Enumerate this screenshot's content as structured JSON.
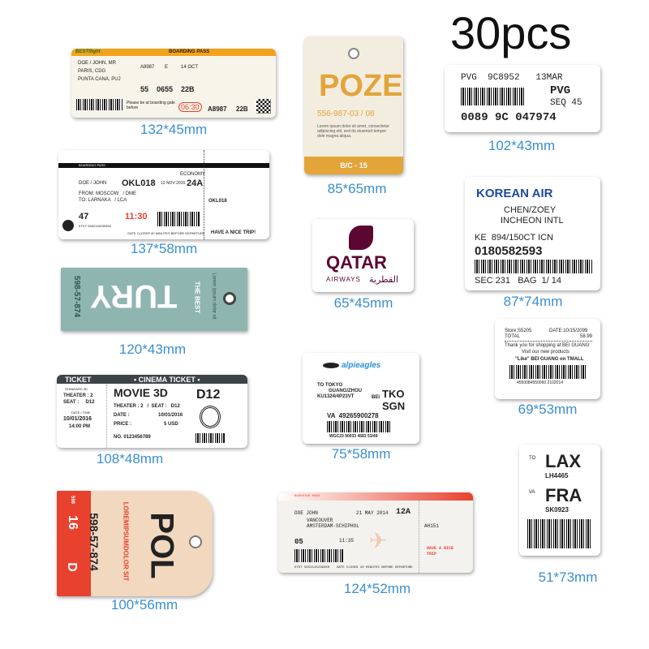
{
  "title": "30pcs",
  "colors": {
    "label": "#3a8fd0",
    "orange": "#f3a21b",
    "poze_gold": "#e3a43a",
    "qatar": "#5c0632",
    "teal": "#8fb5b0",
    "red": "#e8412e",
    "korean": "#1c4a9c"
  },
  "items": [
    {
      "size": "132*45mm",
      "brand": "BESTflight",
      "header": "BOARDING PASS",
      "passenger": "DOE / JOHN, MR",
      "from": "PARIS, CDG",
      "to": "PUNTA CANA, PUJ",
      "flight": "A8987",
      "class": "E",
      "date": "14 OCT",
      "gate": "55",
      "boarding": "0655",
      "seat": "22B",
      "notice": "Please be at boarding gate before",
      "time": "06:30"
    },
    {
      "size": "85*65mm",
      "title": "POZE",
      "code": "556-987-03 / 08",
      "text": "Lorem ipsum dolor sit amet, consectetur adipiscing elit, sed do eiusmod tempor dole magna aliqua.",
      "footer": "B/C - 15"
    },
    {
      "size": "102*43mm",
      "line1": "PVG  9C8952   13MAR",
      "dest": "PVG",
      "seq": "SEQ 45",
      "number": "0089 9C 047974"
    },
    {
      "size": "137*58mm",
      "header": "BOARDING PASS",
      "class": "ECONOMY",
      "passenger": "DOE / JOHN",
      "flight": "OKL018",
      "date": "12 NOV 2015",
      "seat": "24A",
      "from": "FROM: MOSCOW   / DME",
      "to": "TO: LARNAKA   / LCA",
      "gate": "47",
      "boarding": "11:30",
      "etkt": "ETKT 5552115239450",
      "closes": "GATE CLOSES 40 MINUTES BEFORE DEPARTURE",
      "wish": "HAVE A NICE TRIP!"
    },
    {
      "size": "65*45mm",
      "brand": "QATAR",
      "sub": "AIRWAYS",
      "arabic": "القطرية"
    },
    {
      "size": "87*74mm",
      "brand": "KOREAN AIR",
      "name": "CHEN/ZOEY",
      "airport": "INCHEON INTL",
      "flight": "KE  894/150CT ICN",
      "number": "0180582593",
      "seq": "SEC 231   BAG  1/ 14"
    },
    {
      "size": "120*43mm",
      "side": "598-57-874",
      "top": "THE BEST",
      "big": "TURY",
      "small": "Lorem ipsum dolor sit"
    },
    {
      "size": "69*53mm",
      "store": "Store:S5205",
      "date": "DATE:10/15/2099",
      "total_label": "TOTAL",
      "total": "58.99",
      "thanks": "Thank you for  shopping at BEI GUANG",
      "visit": "Visit our new products",
      "like": "\"Like\" BEI GUANG on TMALL",
      "barcode": "4550084550060 2102014"
    },
    {
      "size": "108*48mm",
      "left_header": "TICKET",
      "header": "• CINEMA TICKET •",
      "std": "STANDARD 3D",
      "theater": "THEATER : 2",
      "seat": "SEAT :     D12",
      "dt_label": "DATE / TIME",
      "date": "10/01/2016",
      "time": "14:00 PM",
      "movie": "MOVIE 3D",
      "row1": "THEATER : 2   /  SEAT :   D12",
      "date_label": "DATE :",
      "price_label": "PRICE :",
      "price": "5 USD",
      "no": "NO. 0123456789",
      "code": "D12"
    },
    {
      "size": "75*58mm",
      "brand": "alpieagles",
      "to": "TO TOKYO",
      "via": "GUANG/ZHOU",
      "flight": "KU1324/4P23VT",
      "bei": "BEI",
      "dest1": "TKO",
      "dest2": "SGN",
      "va": "VA  49265900278",
      "barcode": "WGC23 90033 4583 53/49"
    },
    {
      "size": "51*73mm",
      "to": "TO",
      "dest1": "LAX",
      "flight1": "LH4465",
      "va": "VA",
      "dest2": "FRA",
      "flight2": "SK0923"
    },
    {
      "size": "100*56mm",
      "side1": "16",
      "side2": "D",
      "tag": "598",
      "code": "598-57-874",
      "lorem": "LOREMIPSUMDOLOR SIT",
      "big": "POL"
    },
    {
      "size": "124*52mm",
      "header": "BOARDING PASS",
      "passenger": "DOE JOHN",
      "date": "21 MAY 2014",
      "seat": "12A",
      "from": "VANCOUVER",
      "to": "AMSTERDAM-SCHIPHOL",
      "gate": "05",
      "boarding": "11:35",
      "flight": "AH151",
      "wish": "HAVE A NICE TRIP",
      "etkt": "ETKT 5552115239450",
      "closes": "GATE CLOSES 40 MINUTES BEFORE DEPARTURE"
    }
  ]
}
